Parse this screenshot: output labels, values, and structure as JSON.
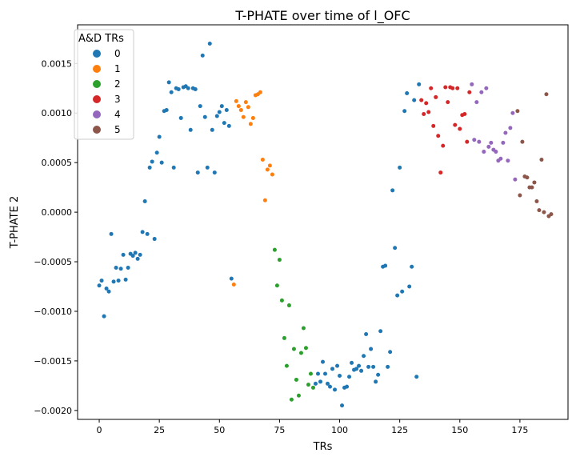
{
  "chart_data": {
    "type": "scatter",
    "title": "T-PHATE over time of l_OFC",
    "xlabel": "TRs",
    "ylabel": "T-PHATE 2",
    "xlim": [
      -9,
      195
    ],
    "ylim": [
      -0.00209,
      0.00189
    ],
    "xticks": [
      0,
      25,
      50,
      75,
      100,
      125,
      150,
      175
    ],
    "xtick_labels": [
      "0",
      "25",
      "50",
      "75",
      "100",
      "125",
      "150",
      "175"
    ],
    "yticks": [
      -0.002,
      -0.0015,
      -0.001,
      -0.0005,
      0.0,
      0.0005,
      0.001,
      0.0015
    ],
    "ytick_labels": [
      "−0.0020",
      "−0.0015",
      "−0.0010",
      "−0.0005",
      "0.0000",
      "0.0005",
      "0.0010",
      "0.0015"
    ],
    "grid": false,
    "legend": {
      "title": "A&D TRs",
      "placement": "top-left",
      "entries": [
        {
          "label": "0",
          "color": "#1f77b4"
        },
        {
          "label": "1",
          "color": "#ff7f0e"
        },
        {
          "label": "2",
          "color": "#2ca02c"
        },
        {
          "label": "3",
          "color": "#d62728"
        },
        {
          "label": "4",
          "color": "#9467bd"
        },
        {
          "label": "5",
          "color": "#8c564b"
        }
      ]
    },
    "series": [
      {
        "name": "0",
        "color": "#1f77b4",
        "points": [
          [
            0,
            -0.00074
          ],
          [
            1,
            -0.00069
          ],
          [
            2,
            -0.00105
          ],
          [
            3,
            -0.00077
          ],
          [
            4,
            -0.0008
          ],
          [
            5,
            -0.00022
          ],
          [
            6,
            -0.0007
          ],
          [
            7,
            -0.00056
          ],
          [
            8,
            -0.00069
          ],
          [
            9,
            -0.00057
          ],
          [
            10,
            -0.00043
          ],
          [
            11,
            -0.00068
          ],
          [
            12,
            -0.00056
          ],
          [
            13,
            -0.00042
          ],
          [
            14,
            -0.00044
          ],
          [
            15,
            -0.00041
          ],
          [
            16,
            -0.00047
          ],
          [
            17,
            -0.00043
          ],
          [
            18,
            -0.0002
          ],
          [
            19,
            0.00011
          ],
          [
            20,
            -0.00022
          ],
          [
            21,
            0.00045
          ],
          [
            22,
            0.00051
          ],
          [
            23,
            -0.00027
          ],
          [
            24,
            0.0006
          ],
          [
            25,
            0.00076
          ],
          [
            26,
            0.0005
          ],
          [
            27,
            0.00102
          ],
          [
            28,
            0.00103
          ],
          [
            29,
            0.00131
          ],
          [
            30,
            0.00121
          ],
          [
            31,
            0.00045
          ],
          [
            32,
            0.00125
          ],
          [
            33,
            0.00124
          ],
          [
            34,
            0.00095
          ],
          [
            35,
            0.00126
          ],
          [
            36,
            0.00127
          ],
          [
            37,
            0.00125
          ],
          [
            38,
            0.00083
          ],
          [
            39,
            0.00125
          ],
          [
            40,
            0.00124
          ],
          [
            41,
            0.0004
          ],
          [
            42,
            0.00107
          ],
          [
            43,
            0.00158
          ],
          [
            44,
            0.00096
          ],
          [
            45,
            0.00045
          ],
          [
            46,
            0.0017
          ],
          [
            47,
            0.00083
          ],
          [
            48,
            0.0004
          ],
          [
            49,
            0.00097
          ],
          [
            50,
            0.00101
          ],
          [
            51,
            0.00107
          ],
          [
            52,
            0.0009
          ],
          [
            53,
            0.00103
          ],
          [
            54,
            0.00087
          ],
          [
            55,
            -0.00067
          ],
          [
            90,
            -0.00173
          ],
          [
            91,
            -0.00163
          ],
          [
            92,
            -0.00171
          ],
          [
            93,
            -0.00151
          ],
          [
            94,
            -0.00163
          ],
          [
            95,
            -0.00173
          ],
          [
            96,
            -0.00176
          ],
          [
            97,
            -0.00158
          ],
          [
            98,
            -0.00179
          ],
          [
            99,
            -0.00155
          ],
          [
            100,
            -0.00165
          ],
          [
            101,
            -0.00195
          ],
          [
            102,
            -0.00177
          ],
          [
            103,
            -0.00176
          ],
          [
            104,
            -0.00166
          ],
          [
            105,
            -0.00152
          ],
          [
            106,
            -0.00159
          ],
          [
            107,
            -0.00158
          ],
          [
            108,
            -0.00155
          ],
          [
            109,
            -0.0016
          ],
          [
            110,
            -0.00145
          ],
          [
            111,
            -0.00123
          ],
          [
            112,
            -0.00156
          ],
          [
            113,
            -0.00138
          ],
          [
            114,
            -0.00156
          ],
          [
            115,
            -0.00171
          ],
          [
            116,
            -0.00164
          ],
          [
            117,
            -0.0012
          ],
          [
            118,
            -0.00055
          ],
          [
            119,
            -0.00054
          ],
          [
            120,
            -0.00156
          ],
          [
            121,
            -0.00141
          ],
          [
            122,
            0.00022
          ],
          [
            123,
            -0.00036
          ],
          [
            124,
            -0.00084
          ],
          [
            125,
            0.00045
          ],
          [
            126,
            -0.0008
          ],
          [
            127,
            0.00102
          ],
          [
            128,
            0.0012
          ],
          [
            129,
            -0.00075
          ],
          [
            130,
            -0.00055
          ],
          [
            131,
            0.00113
          ],
          [
            132,
            -0.00166
          ],
          [
            133,
            0.00129
          ]
        ]
      },
      {
        "name": "1",
        "color": "#ff7f0e",
        "points": [
          [
            56,
            -0.00073
          ],
          [
            57,
            0.00112
          ],
          [
            58,
            0.00107
          ],
          [
            59,
            0.00103
          ],
          [
            60,
            0.00096
          ],
          [
            61,
            0.00111
          ],
          [
            62,
            0.00106
          ],
          [
            63,
            0.00089
          ],
          [
            64,
            0.00095
          ],
          [
            65,
            0.00118
          ],
          [
            66,
            0.00119
          ],
          [
            67,
            0.00121
          ],
          [
            68,
            0.00053
          ],
          [
            69,
            0.00012
          ],
          [
            70,
            0.00043
          ],
          [
            71,
            0.00047
          ],
          [
            72,
            0.00038
          ]
        ]
      },
      {
        "name": "2",
        "color": "#2ca02c",
        "points": [
          [
            73,
            -0.00038
          ],
          [
            74,
            -0.00074
          ],
          [
            75,
            -0.00048
          ],
          [
            76,
            -0.00089
          ],
          [
            77,
            -0.00127
          ],
          [
            78,
            -0.00155
          ],
          [
            79,
            -0.00094
          ],
          [
            80,
            -0.00189
          ],
          [
            81,
            -0.00138
          ],
          [
            82,
            -0.00169
          ],
          [
            83,
            -0.00185
          ],
          [
            84,
            -0.00142
          ],
          [
            85,
            -0.00117
          ],
          [
            86,
            -0.00137
          ],
          [
            87,
            -0.00174
          ],
          [
            88,
            -0.00163
          ],
          [
            89,
            -0.00177
          ]
        ]
      },
      {
        "name": "3",
        "color": "#d62728",
        "points": [
          [
            134,
            0.00113
          ],
          [
            135,
            0.00099
          ],
          [
            136,
            0.0011
          ],
          [
            137,
            0.00101
          ],
          [
            138,
            0.00125
          ],
          [
            139,
            0.00087
          ],
          [
            140,
            0.00116
          ],
          [
            141,
            0.00077
          ],
          [
            142,
            0.0004
          ],
          [
            143,
            0.00067
          ],
          [
            144,
            0.00126
          ],
          [
            145,
            0.00111
          ],
          [
            146,
            0.00126
          ],
          [
            147,
            0.00125
          ],
          [
            148,
            0.00088
          ],
          [
            149,
            0.00125
          ],
          [
            150,
            0.00084
          ],
          [
            151,
            0.00098
          ],
          [
            152,
            0.00099
          ],
          [
            153,
            0.00071
          ],
          [
            154,
            0.00121
          ]
        ]
      },
      {
        "name": "4",
        "color": "#9467bd",
        "points": [
          [
            155,
            0.00129
          ],
          [
            156,
            0.00073
          ],
          [
            157,
            0.00111
          ],
          [
            158,
            0.00071
          ],
          [
            159,
            0.00121
          ],
          [
            160,
            0.00061
          ],
          [
            161,
            0.00125
          ],
          [
            162,
            0.00066
          ],
          [
            163,
            0.0007
          ],
          [
            164,
            0.00063
          ],
          [
            165,
            0.00061
          ],
          [
            166,
            0.00052
          ],
          [
            167,
            0.00054
          ],
          [
            168,
            0.0007
          ],
          [
            169,
            0.0008
          ],
          [
            170,
            0.00052
          ],
          [
            171,
            0.00085
          ],
          [
            172,
            0.001
          ],
          [
            173,
            0.00033
          ]
        ]
      },
      {
        "name": "5",
        "color": "#8c564b",
        "points": [
          [
            174,
            0.00102
          ],
          [
            175,
            0.00017
          ],
          [
            176,
            0.00071
          ],
          [
            177,
            0.00036
          ],
          [
            178,
            0.00035
          ],
          [
            179,
            0.00025
          ],
          [
            180,
            0.00025
          ],
          [
            181,
            0.0003
          ],
          [
            182,
            0.00011
          ],
          [
            183,
            2e-05
          ],
          [
            184,
            0.00053
          ],
          [
            185,
            0.0
          ],
          [
            186,
            0.00119
          ],
          [
            187,
            -4e-05
          ],
          [
            188,
            -2e-05
          ]
        ]
      }
    ]
  }
}
